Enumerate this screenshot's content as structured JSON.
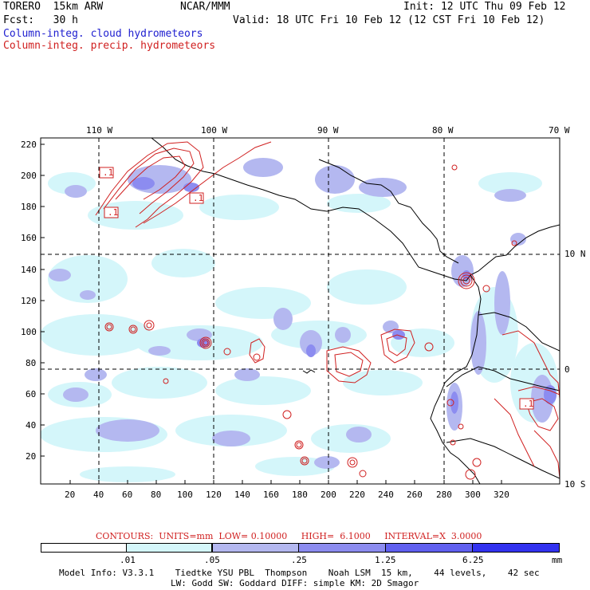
{
  "header": {
    "model": "TORERO  15km ARW",
    "center": "NCAR/MMM",
    "init": "Init: 12 UTC Thu 09 Feb 12",
    "fcst": "Fcst:   30 h",
    "valid": "Valid: 18 UTC Fri 10 Feb 12 (12 CST Fri 10 Feb 12)",
    "field_blue": "Column-integ. cloud hydrometeors",
    "field_red": "Column-integ. precip. hydrometeors"
  },
  "map": {
    "lon_labels": [
      "110 W",
      "100 W",
      "90 W",
      "80 W",
      "70 W"
    ],
    "lat_labels": [
      "10 N",
      "0",
      "10 S"
    ],
    "y_ticks": [
      "220",
      "200",
      "180",
      "160",
      "140",
      "120",
      "100",
      "80",
      "60",
      "40",
      "20"
    ],
    "x_ticks": [
      "20",
      "40",
      "60",
      "80",
      "100",
      "120",
      "140",
      "160",
      "180",
      "200",
      "220",
      "240",
      "260",
      "280",
      "300",
      "320"
    ],
    "contour_labels": [
      ".1",
      ".1",
      ".1",
      ".1"
    ]
  },
  "contours_info": "CONTOURS:  UNITS=mm  LOW= 0.10000     HIGH=  6.1000     INTERVAL=X  3.0000",
  "colorbar": {
    "labels": [
      ".01",
      ".05",
      ".25",
      "1.25",
      "6.25"
    ],
    "units": "mm",
    "colors": [
      "#ffffff",
      "#d4f6fa",
      "#b4b8f0",
      "#8c8cf0",
      "#6060f0",
      "#3232f0"
    ]
  },
  "footer": {
    "line1": "Model Info: V3.3.1    Tiedtke YSU PBL  Thompson    Noah LSM  15 km,    44 levels,    42 sec",
    "line2": "LW: Godd SW: Goddard DIFF: simple KM: 2D Smagor"
  }
}
